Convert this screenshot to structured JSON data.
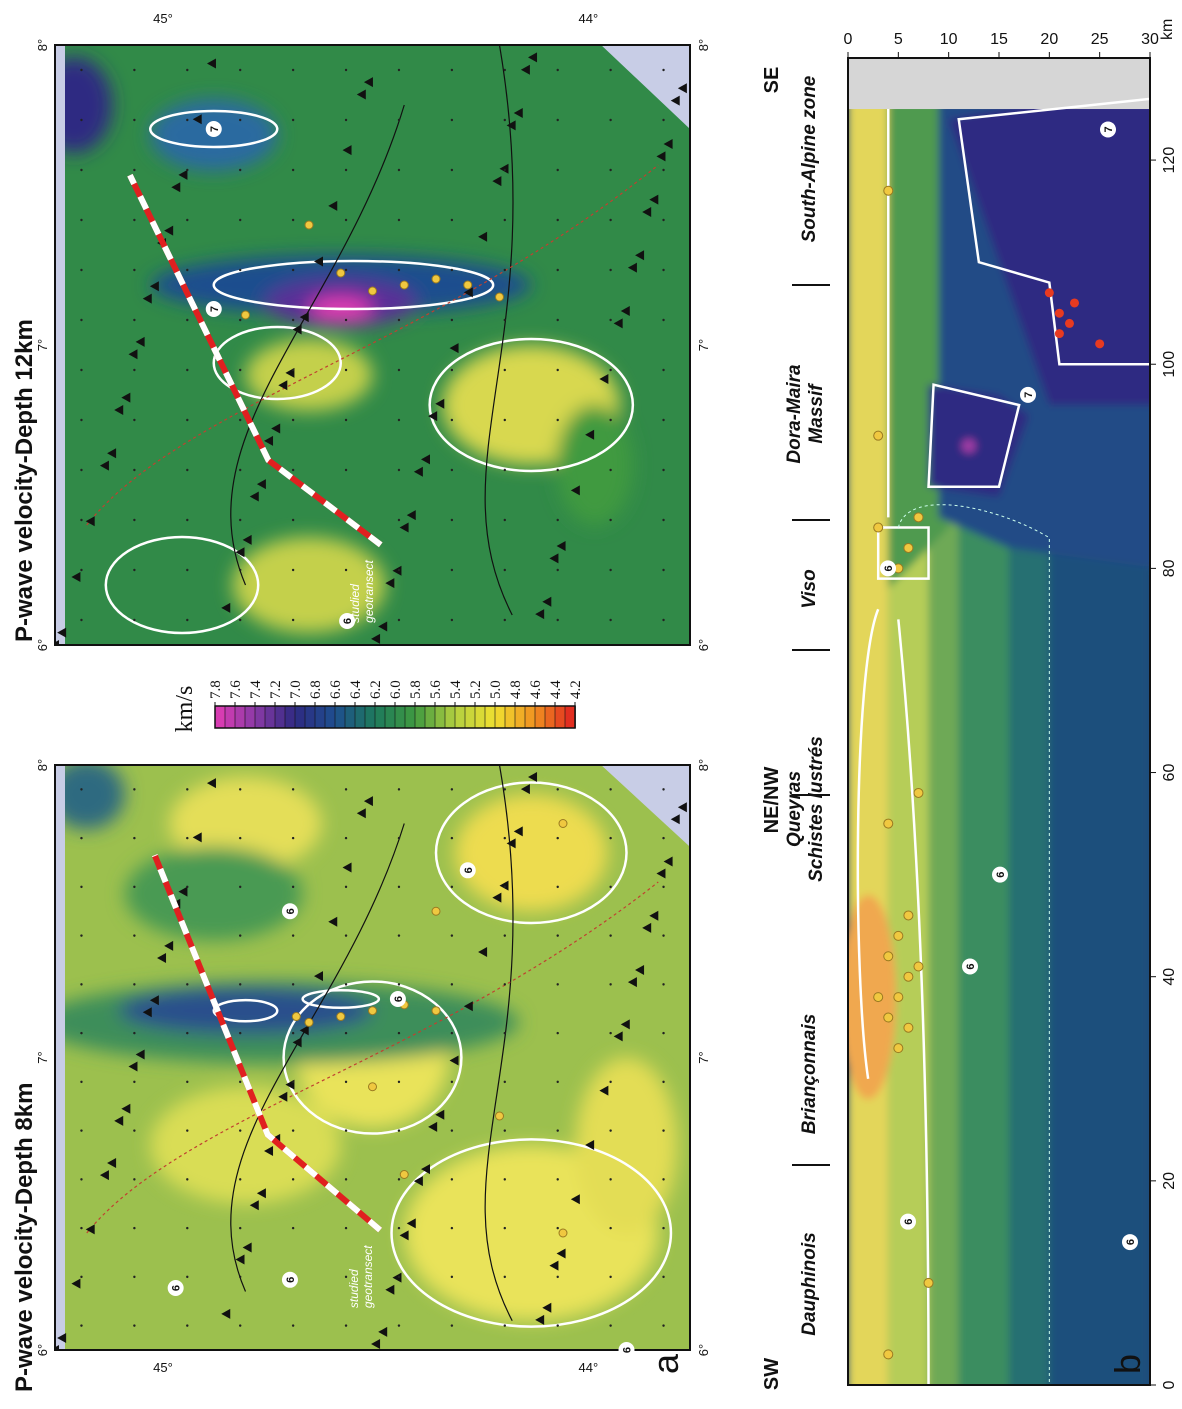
{
  "map_8km": {
    "title": "P-wave velocity-Depth 8km",
    "panel_label": "a",
    "lon_labels": [
      "6°",
      "7°",
      "8°"
    ],
    "lat_labels": [
      "45°",
      "44°"
    ],
    "annotation": [
      "studied",
      "geotransect"
    ],
    "contour_labels": [
      "6",
      "6",
      "6",
      "6",
      "6",
      "6"
    ]
  },
  "map_12km": {
    "title": "P-wave velocity-Depth 12km",
    "lon_labels": [
      "6°",
      "7°",
      "8°"
    ],
    "lat_labels": [
      "45°",
      "44°"
    ],
    "annotation": [
      "studied",
      "geotransect"
    ],
    "contour_labels": [
      "6",
      "7",
      "7"
    ]
  },
  "colorbar": {
    "unit": "km/s",
    "lim": [
      7.8,
      4.2
    ],
    "ticks": [
      7.8,
      7.6,
      7.4,
      7.2,
      {
        "value": 7,
        "label": "7.0"
      },
      6.8,
      6.6,
      6.4,
      6.2,
      {
        "value": 6,
        "label": "6.0"
      },
      5.8,
      5.6,
      5.4,
      5.2,
      {
        "value": 5,
        "label": "5.0"
      },
      4.8,
      4.6,
      4.4,
      4.2
    ],
    "colors": [
      "#e23cb4",
      "#8a3aa6",
      "#2e2a82",
      "#1e4e8e",
      "#1e7a5c",
      "#3f9a40",
      "#b3d040",
      "#f0e030",
      "#f09020",
      "#e02020"
    ]
  },
  "section": {
    "panel_label": "b",
    "directions": [
      "SW",
      "NE/NW",
      "SE"
    ],
    "regions": [
      [
        "Dauphinois"
      ],
      [
        "Briançonnais"
      ],
      [
        "Queyras",
        "Schistes lustrés"
      ],
      [
        "Viso"
      ],
      [
        "Dora-Maira",
        "Massif"
      ],
      [
        "South-Alpine zone"
      ]
    ],
    "xlim": [
      0,
      130
    ],
    "xticks": [
      0,
      20,
      40,
      60,
      80,
      100,
      120
    ],
    "depth_lim": [
      0,
      30
    ],
    "depth_ticks": [
      0,
      5,
      10,
      15,
      20,
      25,
      30
    ],
    "depth_unit": "km",
    "contour_labels": [
      "6",
      "6",
      "6",
      "6",
      "6",
      "7",
      "7"
    ]
  }
}
